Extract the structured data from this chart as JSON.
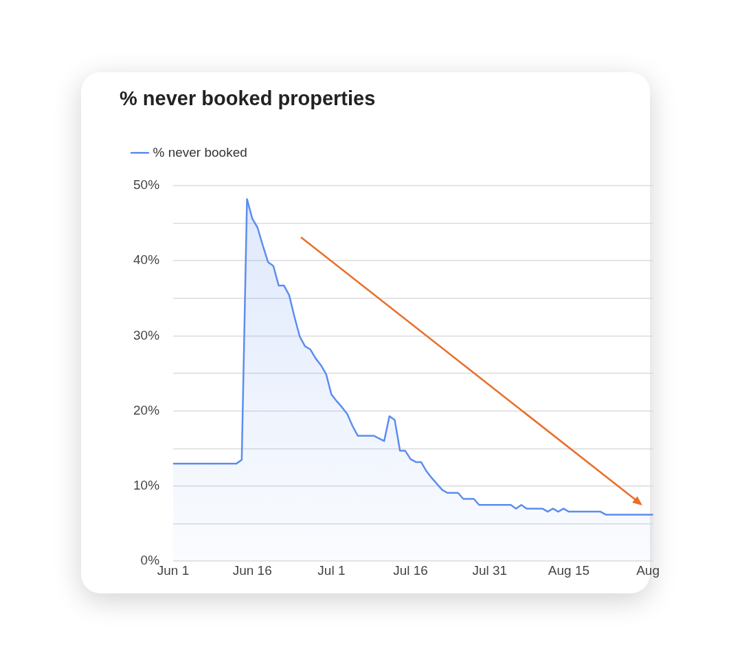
{
  "chart_data": {
    "type": "area",
    "title": "% never booked properties",
    "x": [
      "--06-01",
      "--06-13",
      "--06-14",
      "--06-15",
      "--06-16",
      "--06-17",
      "--06-18",
      "--06-19",
      "--06-20",
      "--06-21",
      "--06-22",
      "--06-23",
      "--06-24",
      "--06-25",
      "--06-26",
      "--06-27",
      "--06-28",
      "--06-29",
      "--06-30",
      "--07-01",
      "--07-02",
      "--07-03",
      "--07-04",
      "--07-05",
      "--07-06",
      "--07-09",
      "--07-11",
      "--07-12",
      "--07-13",
      "--07-14",
      "--07-15",
      "--07-16",
      "--07-17",
      "--07-18",
      "--07-19",
      "--07-20",
      "--07-21",
      "--07-22",
      "--07-23",
      "--07-25",
      "--07-26",
      "--07-28",
      "--07-29",
      "--08-04",
      "--08-05",
      "--08-06",
      "--08-07",
      "--08-10",
      "--08-11",
      "--08-12",
      "--08-13",
      "--08-14",
      "--08-15",
      "--08-21",
      "--08-22",
      "--08-31"
    ],
    "series": [
      {
        "name": "% never booked",
        "color": "#5b8def",
        "values": [
          13,
          13,
          13.5,
          48.2,
          45.6,
          44.4,
          42,
          39.8,
          39.3,
          36.7,
          36.7,
          35.4,
          32.5,
          29.9,
          28.6,
          28.2,
          27.0,
          26.1,
          24.9,
          22.2,
          21.3,
          20.5,
          19.6,
          18.0,
          16.7,
          16.7,
          16.0,
          19.3,
          18.8,
          14.7,
          14.7,
          13.6,
          13.2,
          13.2,
          12.0,
          11.1,
          10.3,
          9.5,
          9.1,
          9.1,
          8.3,
          8.3,
          7.5,
          7.5,
          7.0,
          7.5,
          7.0,
          7.0,
          6.6,
          7.0,
          6.6,
          7.0,
          6.6,
          6.6,
          6.2,
          6.2
        ]
      }
    ],
    "xlim": [
      "--06-01",
      "--08-31"
    ],
    "xticks": [
      {
        "value": "--06-01",
        "label": "Jun 1"
      },
      {
        "value": "--06-16",
        "label": "Jun 16"
      },
      {
        "value": "--07-01",
        "label": "Jul 1"
      },
      {
        "value": "--07-16",
        "label": "Jul 16"
      },
      {
        "value": "--07-31",
        "label": "Jul 31"
      },
      {
        "value": "--08-15",
        "label": "Aug 15"
      },
      {
        "value": "--08-30",
        "label": "Aug"
      }
    ],
    "ylim": [
      0,
      50
    ],
    "yticks": [
      {
        "value": 0,
        "label": "0%"
      },
      {
        "value": 5,
        "label": null
      },
      {
        "value": 10,
        "label": "10%"
      },
      {
        "value": 15,
        "label": null
      },
      {
        "value": 20,
        "label": "20%"
      },
      {
        "value": 25,
        "label": null
      },
      {
        "value": 30,
        "label": "30%"
      },
      {
        "value": 35,
        "label": null
      },
      {
        "value": 40,
        "label": "40%"
      },
      {
        "value": 45,
        "label": null
      },
      {
        "value": 50,
        "label": "50%"
      }
    ],
    "grid": "y",
    "legend": "top left",
    "marker": "none",
    "line_style": "solid"
  }
}
